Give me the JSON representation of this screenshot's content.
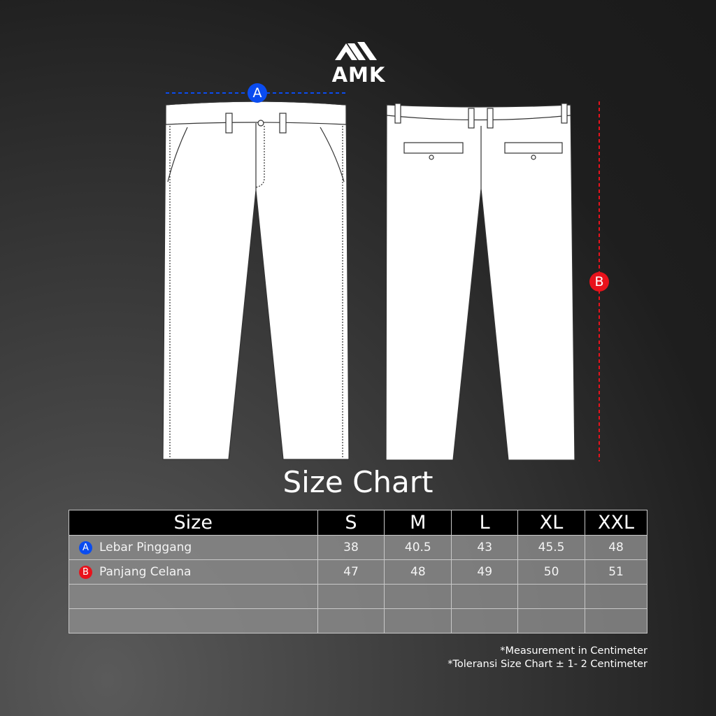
{
  "brand": {
    "name": "AMK"
  },
  "title": "Size Chart",
  "markers": {
    "a": {
      "letter": "A",
      "color": "#0a4cf0"
    },
    "b": {
      "letter": "B",
      "color": "#e8121b"
    }
  },
  "table": {
    "header": [
      "Size",
      "S",
      "M",
      "L",
      "XL",
      "XXL"
    ],
    "rows": [
      {
        "badge": "A",
        "badge_color": "#0a4cf0",
        "label": "Lebar Pinggang",
        "values": [
          "38",
          "40.5",
          "43",
          "45.5",
          "48"
        ]
      },
      {
        "badge": "B",
        "badge_color": "#e8121b",
        "label": "Panjang Celana",
        "values": [
          "47",
          "48",
          "49",
          "50",
          "51"
        ]
      },
      {
        "badge": "",
        "label": "",
        "values": [
          "",
          "",
          "",
          "",
          ""
        ]
      },
      {
        "badge": "",
        "label": "",
        "values": [
          "",
          "",
          "",
          "",
          ""
        ]
      }
    ]
  },
  "notes": [
    "*Measurement in Centimeter",
    "*Toleransi Size Chart ± 1- 2 Centimeter"
  ]
}
